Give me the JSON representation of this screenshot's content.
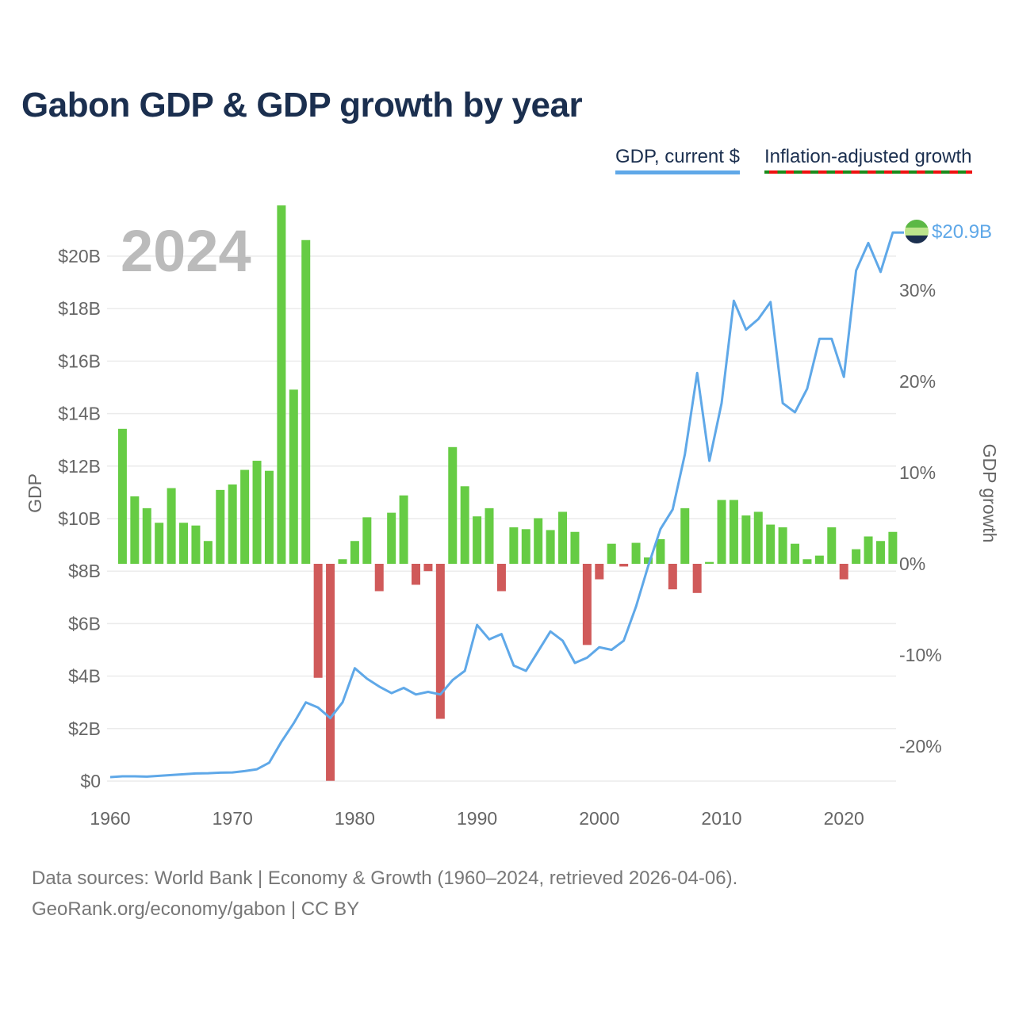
{
  "title": "Gabon GDP & GDP growth by year",
  "legend": {
    "gdp": "GDP, current $",
    "growth": "Inflation-adjusted growth"
  },
  "year_label": "2024",
  "end_label": "$20.9B",
  "footer": {
    "line1": "Data sources: World Bank | Economy & Growth (1960–2024, retrieved 2026-04-06).",
    "line2": "GeoRank.org/economy/gabon | CC BY"
  },
  "colors": {
    "line": "#5fa8e8",
    "positive": "#66cc44",
    "negative": "#d05a5a",
    "title": "#1b2f4f"
  },
  "chart_data": {
    "type": "bar+line",
    "title": "Gabon GDP & GDP growth by year",
    "ylabel": "GDP",
    "y2label": "GDP growth",
    "xlim": [
      1960,
      2024
    ],
    "ylim": [
      0,
      21
    ],
    "y2lim": [
      -24,
      40
    ],
    "x_ticks": [
      "1960",
      "1970",
      "1980",
      "1990",
      "2000",
      "2010",
      "2020"
    ],
    "y_ticks": [
      {
        "v": 0,
        "label": "$0"
      },
      {
        "v": 2,
        "label": "$2B"
      },
      {
        "v": 4,
        "label": "$4B"
      },
      {
        "v": 6,
        "label": "$6B"
      },
      {
        "v": 8,
        "label": "$8B"
      },
      {
        "v": 10,
        "label": "$10B"
      },
      {
        "v": 12,
        "label": "$12B"
      },
      {
        "v": 14,
        "label": "$14B"
      },
      {
        "v": 16,
        "label": "$16B"
      },
      {
        "v": 18,
        "label": "$18B"
      },
      {
        "v": 20,
        "label": "$20B"
      }
    ],
    "y2_ticks": [
      {
        "v": 30,
        "label": "30%"
      },
      {
        "v": 20,
        "label": "20%"
      },
      {
        "v": 10,
        "label": "10%"
      },
      {
        "v": 0,
        "label": "0%"
      },
      {
        "v": -10,
        "label": "-10%"
      },
      {
        "v": -20,
        "label": "-20%"
      }
    ],
    "series": [
      {
        "name": "GDP, current $ (billions)",
        "type": "line",
        "start_year": 1960,
        "values": [
          0.15,
          0.18,
          0.18,
          0.17,
          0.2,
          0.23,
          0.26,
          0.29,
          0.3,
          0.32,
          0.33,
          0.38,
          0.45,
          0.7,
          1.5,
          2.2,
          3.0,
          2.8,
          2.4,
          3.0,
          4.3,
          3.9,
          3.6,
          3.35,
          3.55,
          3.3,
          3.4,
          3.3,
          3.85,
          4.2,
          5.95,
          5.4,
          5.6,
          4.4,
          4.2,
          4.95,
          5.7,
          5.35,
          4.5,
          4.7,
          5.1,
          5.0,
          5.35,
          6.65,
          8.2,
          9.6,
          10.35,
          12.45,
          15.55,
          12.2,
          14.4,
          18.3,
          17.2,
          17.6,
          18.25,
          14.4,
          14.05,
          14.95,
          16.85,
          16.85,
          15.4,
          19.45,
          20.5,
          19.4,
          20.9
        ]
      },
      {
        "name": "Inflation-adjusted growth (%)",
        "type": "bar",
        "start_year": 1961,
        "values": [
          14.8,
          7.4,
          6.1,
          4.5,
          8.3,
          4.5,
          4.2,
          2.5,
          8.1,
          8.7,
          10.3,
          11.3,
          10.2,
          39.3,
          19.1,
          35.5,
          -12.5,
          -23.8,
          0.5,
          2.5,
          5.1,
          -3.0,
          5.6,
          7.5,
          -2.3,
          -0.8,
          -17.0,
          12.8,
          8.5,
          5.2,
          6.1,
          -3.0,
          4.0,
          3.8,
          5.0,
          3.7,
          5.7,
          3.5,
          -8.9,
          -1.7,
          2.2,
          -0.3,
          2.3,
          0.7,
          2.7,
          -2.8,
          6.1,
          -3.2,
          0.2,
          7.0,
          7.0,
          5.3,
          5.7,
          4.3,
          4.0,
          2.2,
          0.5,
          0.9,
          4.0,
          -1.7,
          1.6,
          3.0,
          2.5,
          3.5
        ]
      }
    ]
  }
}
